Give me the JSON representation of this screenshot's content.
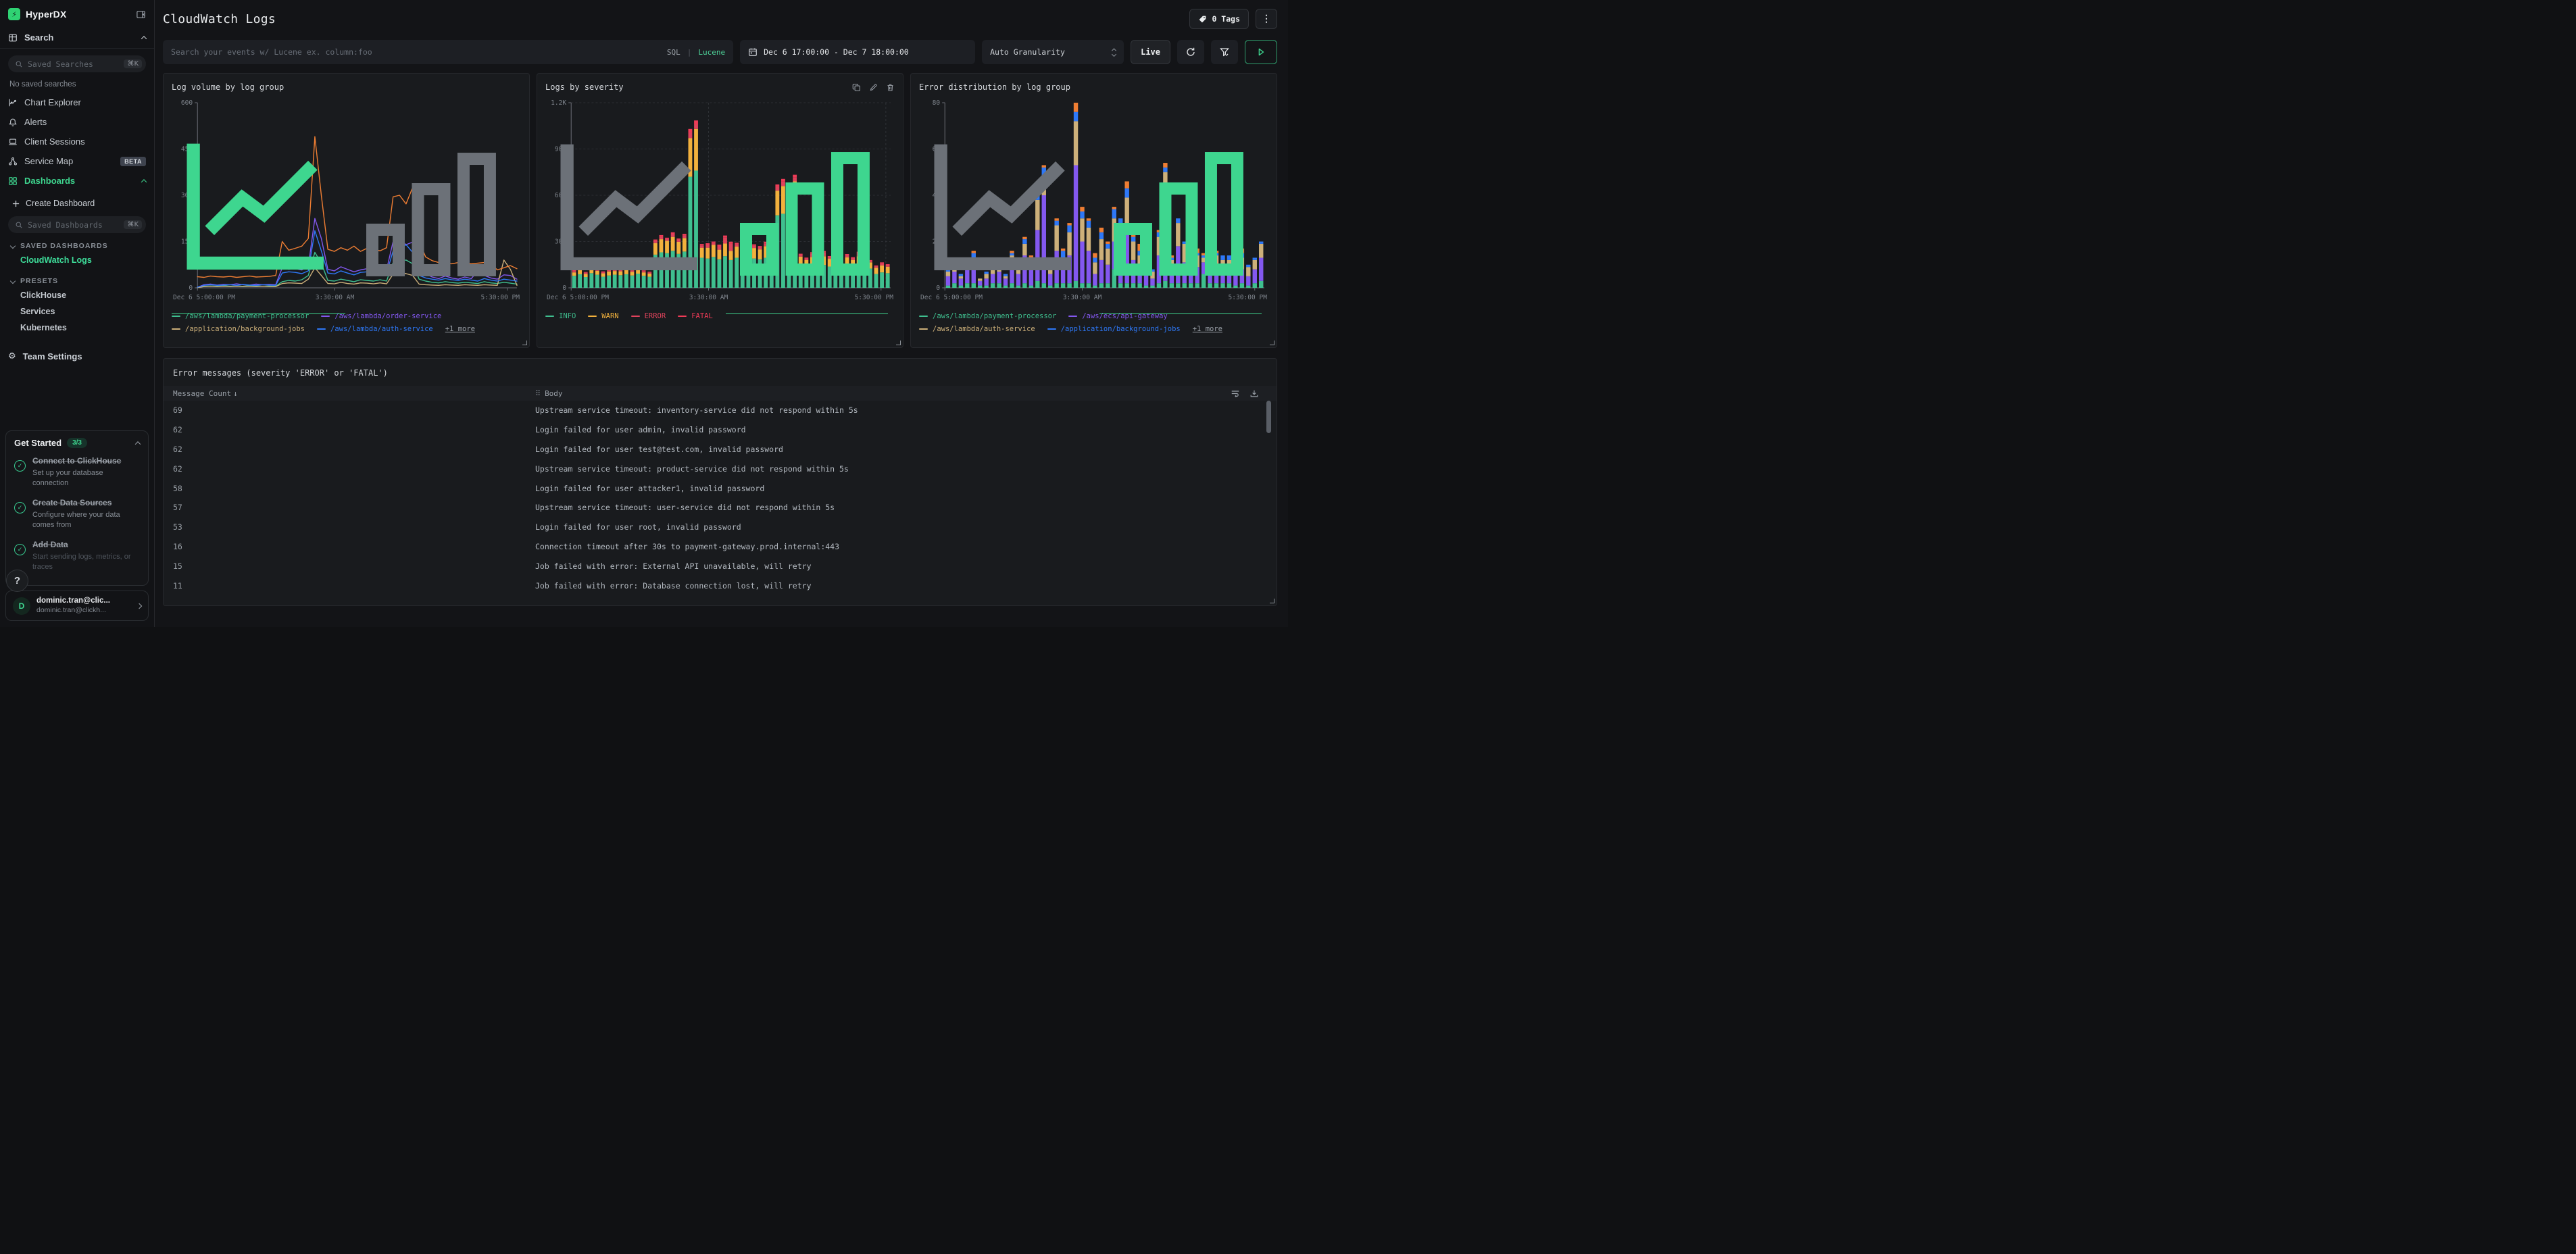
{
  "colors": {
    "accent_green": "#3ed68f",
    "brand_green": "#2fd273"
  },
  "sidebar": {
    "brand": "HyperDX",
    "search_label": "Search",
    "saved_searches_placeholder": "Saved Searches",
    "shortcut": "⌘K",
    "no_saved": "No saved searches",
    "items": [
      {
        "label": "Chart Explorer"
      },
      {
        "label": "Alerts"
      },
      {
        "label": "Client Sessions"
      },
      {
        "label": "Service Map",
        "badge": "BETA"
      },
      {
        "label": "Dashboards"
      }
    ],
    "create_dashboard": "Create Dashboard",
    "saved_dashboards_placeholder": "Saved Dashboards",
    "sections": {
      "saved": "SAVED DASHBOARDS",
      "active": "CloudWatch Logs",
      "presets_label": "PRESETS"
    },
    "presets": [
      "ClickHouse",
      "Services",
      "Kubernetes"
    ],
    "team_settings": "Team Settings",
    "get_started": {
      "title": "Get Started",
      "badge": "3/3",
      "steps": [
        {
          "title": "Connect to ClickHouse",
          "desc": "Set up your database connection"
        },
        {
          "title": "Create Data Sources",
          "desc": "Configure where your data comes from"
        },
        {
          "title": "Add Data",
          "desc": "Start sending logs, metrics, or traces"
        }
      ]
    },
    "help": "?",
    "user": {
      "initial": "D",
      "name": "dominic.tran@clic...",
      "email": "dominic.tran@clickh..."
    }
  },
  "header": {
    "title": "CloudWatch Logs",
    "tags_label": "0 Tags"
  },
  "controls": {
    "search_placeholder": "Search your events w/ Lucene ex. column:foo",
    "sql_label": "SQL",
    "divider": "|",
    "lucene_label": "Lucene",
    "date_range": "Dec 6 17:00:00 - Dec 7 18:00:00",
    "granularity": "Auto Granularity",
    "live_label": "Live"
  },
  "chart_data": [
    {
      "type": "line",
      "title": "Log volume by log group",
      "active_view": "line",
      "grid": false,
      "ylim": [
        0,
        600
      ],
      "y_ticks": [
        0,
        150,
        300,
        450,
        600
      ],
      "x_ticks": [
        "Dec 6 5:00:00 PM",
        "3:30:00 AM",
        "5:30:00 PM"
      ],
      "x_tick_pos": [
        0,
        0.43,
        0.97
      ],
      "more_label": "+1 more",
      "series": [
        {
          "name": "/aws/lambda/payment-processor",
          "color": "#3fbf8f",
          "values": [
            1,
            5,
            6,
            5,
            7,
            5,
            6,
            5,
            7,
            6,
            5,
            6,
            5,
            20,
            24,
            22,
            26,
            40,
            115,
            80,
            24,
            22,
            28,
            24,
            20,
            26,
            24,
            22,
            26,
            22,
            82,
            88,
            90,
            78,
            28,
            22,
            18,
            16,
            20,
            17,
            15,
            18,
            16,
            14,
            20,
            16,
            14,
            18,
            15,
            12
          ]
        },
        {
          "name": "/aws/lambda/order-service",
          "color": "#8358ef",
          "values": [
            2,
            10,
            12,
            9,
            11,
            10,
            13,
            10,
            9,
            12,
            10,
            11,
            10,
            65,
            60,
            62,
            58,
            70,
            225,
            160,
            60,
            55,
            68,
            60,
            52,
            58,
            62,
            55,
            60,
            58,
            150,
            155,
            140,
            148,
            60,
            45,
            35,
            30,
            38,
            32,
            28,
            35,
            30,
            55,
            40,
            32,
            28,
            42,
            40,
            28
          ]
        },
        {
          "name": "/application/background-jobs",
          "color": "#cdb07a",
          "values": [
            1,
            4,
            5,
            4,
            5,
            4,
            5,
            4,
            5,
            4,
            5,
            4,
            4,
            14,
            16,
            15,
            14,
            28,
            65,
            40,
            14,
            13,
            18,
            14,
            12,
            16,
            15,
            13,
            16,
            13,
            44,
            48,
            46,
            40,
            12,
            10,
            9,
            8,
            10,
            9,
            8,
            10,
            9,
            8,
            10,
            9,
            8,
            90,
            60,
            8
          ]
        },
        {
          "name": "/aws/lambda/auth-service",
          "color": "#2e78f7",
          "values": [
            2,
            8,
            10,
            8,
            9,
            10,
            8,
            11,
            9,
            8,
            10,
            9,
            8,
            48,
            52,
            50,
            46,
            55,
            185,
            120,
            48,
            45,
            55,
            48,
            42,
            50,
            52,
            45,
            50,
            46,
            120,
            128,
            140,
            115,
            40,
            32,
            28,
            25,
            30,
            26,
            24,
            28,
            25,
            22,
            30,
            25,
            22,
            28,
            25,
            22
          ]
        },
        {
          "name": "+1 more",
          "color": "#ef7e33",
          "hide_in_legend": true,
          "values": [
            36,
            34,
            38,
            36,
            35,
            37,
            34,
            36,
            38,
            35,
            36,
            37,
            40,
            150,
            122,
            128,
            135,
            160,
            490,
            300,
            125,
            118,
            130,
            122,
            135,
            118,
            128,
            125,
            120,
            130,
            295,
            300,
            272,
            325,
            150,
            100,
            88,
            82,
            80,
            78,
            82,
            80,
            78,
            80,
            82,
            78,
            58,
            65,
            72,
            62
          ]
        }
      ]
    },
    {
      "type": "stacked_bar",
      "title": "Logs by severity",
      "active_view": "bar",
      "grid": true,
      "ylim": [
        0,
        1200
      ],
      "y_ticks": [
        0,
        300,
        600,
        900,
        1200
      ],
      "y_tick_labels": [
        "0",
        "300",
        "600",
        "900",
        "1.2K"
      ],
      "x_ticks": [
        "Dec 6 5:00:00 PM",
        "3:30:00 AM",
        "5:30:00 PM"
      ],
      "x_tick_pos": [
        0,
        0.43,
        0.97
      ],
      "series": [
        {
          "name": "INFO",
          "color": "#3fbf8f",
          "values": [
            78,
            88,
            70,
            95,
            85,
            72,
            80,
            85,
            82,
            88,
            80,
            92,
            78,
            72,
            215,
            230,
            225,
            240,
            220,
            235,
            720,
            760,
            195,
            190,
            200,
            185,
            205,
            180,
            195,
            170,
            200,
            190,
            185,
            195,
            180,
            470,
            480,
            440,
            490,
            150,
            135,
            145,
            140,
            148,
            138,
            152,
            128,
            145,
            135,
            150,
            142,
            125,
            90,
            100,
            95
          ]
        },
        {
          "name": "WARN",
          "color": "#f2b13d",
          "values": [
            22,
            26,
            20,
            30,
            25,
            22,
            26,
            24,
            25,
            28,
            24,
            30,
            22,
            20,
            75,
            85,
            80,
            90,
            78,
            88,
            250,
            270,
            65,
            70,
            78,
            62,
            82,
            60,
            72,
            58,
            80,
            68,
            64,
            75,
            60,
            160,
            180,
            165,
            200,
            52,
            45,
            55,
            48,
            56,
            50,
            58,
            42,
            52,
            46,
            55,
            50,
            40,
            40,
            45,
            42
          ]
        },
        {
          "name": "ERROR",
          "color": "#e0435c",
          "values": [
            9,
            11,
            8,
            12,
            10,
            8,
            11,
            9,
            10,
            12,
            9,
            12,
            8,
            8,
            14,
            16,
            12,
            18,
            13,
            16,
            35,
            30,
            15,
            18,
            14,
            20,
            40,
            45,
            16,
            12,
            22,
            15,
            14,
            18,
            12,
            25,
            28,
            30,
            25,
            12,
            10,
            22,
            14,
            25,
            12,
            18,
            10,
            15,
            12,
            20,
            14,
            10,
            10,
            12,
            10
          ]
        },
        {
          "name": "FATAL",
          "color": "#ef3b57",
          "values": [
            5,
            7,
            5,
            8,
            6,
            5,
            7,
            5,
            6,
            8,
            5,
            8,
            5,
            5,
            9,
            11,
            8,
            12,
            9,
            11,
            25,
            25,
            9,
            11,
            8,
            13,
            12,
            14,
            9,
            7,
            12,
            9,
            8,
            11,
            7,
            15,
            18,
            20,
            18,
            7,
            6,
            9,
            7,
            10,
            6,
            8,
            5,
            7,
            6,
            9,
            7,
            5,
            5,
            8,
            6
          ]
        }
      ]
    },
    {
      "type": "stacked_bar",
      "title": "Error distribution by log group",
      "active_view": "bar",
      "grid": false,
      "ylim": [
        0,
        80
      ],
      "y_ticks": [
        0,
        20,
        40,
        60,
        80
      ],
      "x_ticks": [
        "Dec 6 5:00:00 PM",
        "3:30:00 AM",
        "5:30:00 PM"
      ],
      "x_tick_pos": [
        0,
        0.43,
        0.97
      ],
      "more_label": "+1 more",
      "series": [
        {
          "name": "/aws/lambda/payment-processor",
          "color": "#3fbf8f",
          "values": [
            1,
            2,
            1,
            2,
            2,
            1,
            1,
            2,
            2,
            1,
            2,
            1,
            2,
            1,
            3,
            2,
            1,
            2,
            2,
            2,
            3,
            2,
            2,
            1,
            2,
            2,
            8,
            2,
            2,
            2,
            2,
            1,
            1,
            2,
            3,
            2,
            2,
            2,
            2,
            2,
            6,
            2,
            2,
            2,
            2,
            1,
            2,
            1,
            2,
            3
          ]
        },
        {
          "name": "/aws/ecs/api-gateway",
          "color": "#8358ef",
          "values": [
            4,
            5,
            3,
            6,
            8,
            2,
            3,
            4,
            5,
            3,
            8,
            5,
            12,
            7,
            22,
            38,
            5,
            14,
            6,
            12,
            50,
            18,
            14,
            5,
            10,
            8,
            12,
            14,
            21,
            10,
            6,
            5,
            3,
            12,
            29,
            6,
            16,
            9,
            9,
            7,
            5,
            7,
            7,
            6,
            6,
            5,
            6,
            4,
            6,
            10
          ]
        },
        {
          "name": "/aws/lambda/auth-service",
          "color": "#cdb07a",
          "values": [
            2,
            2,
            1,
            3,
            3,
            1,
            2,
            2,
            2,
            1,
            4,
            3,
            5,
            4,
            13,
            8,
            3,
            11,
            5,
            10,
            19,
            10,
            10,
            5,
            9,
            7,
            10,
            11,
            16,
            8,
            6,
            4,
            3,
            8,
            18,
            4,
            10,
            8,
            7,
            5,
            2,
            6,
            5,
            4,
            4,
            4,
            5,
            4,
            4,
            6
          ]
        },
        {
          "name": "/application/background-jobs",
          "color": "#2e78f7",
          "values": [
            1,
            1,
            1,
            2,
            2,
            0,
            1,
            1,
            1,
            1,
            1,
            1,
            2,
            1,
            2,
            4,
            1,
            2,
            3,
            3,
            4,
            3,
            3,
            2,
            3,
            2,
            4,
            3,
            4,
            2,
            2,
            1,
            1,
            2,
            2,
            1,
            2,
            1,
            1,
            1,
            1,
            2,
            1,
            2,
            2,
            1,
            2,
            1,
            1,
            1
          ]
        },
        {
          "name": "+1 more",
          "color": "#ef7e33",
          "hide_in_legend": true,
          "values": [
            0,
            0,
            0,
            0,
            1,
            0,
            0,
            0,
            0,
            0,
            1,
            0,
            1,
            1,
            4,
            1,
            0,
            1,
            1,
            1,
            4,
            2,
            1,
            2,
            2,
            1,
            1,
            0,
            3,
            1,
            3,
            1,
            0,
            1,
            2,
            1,
            0,
            0,
            1,
            2,
            1,
            1,
            1,
            0,
            0,
            1,
            2,
            0,
            0,
            0
          ]
        }
      ]
    }
  ],
  "table": {
    "title": "Error messages (severity 'ERROR' or 'FATAL')",
    "columns": {
      "count": "Message Count",
      "sort_arrow": "↓",
      "body": "Body"
    },
    "rows": [
      {
        "count": 69,
        "body": "Upstream service timeout: inventory-service did not respond within 5s"
      },
      {
        "count": 62,
        "body": "Login failed for user admin, invalid password"
      },
      {
        "count": 62,
        "body": "Login failed for user test@test.com, invalid password"
      },
      {
        "count": 62,
        "body": "Upstream service timeout: product-service did not respond within 5s"
      },
      {
        "count": 58,
        "body": "Login failed for user attacker1, invalid password"
      },
      {
        "count": 57,
        "body": "Upstream service timeout: user-service did not respond within 5s"
      },
      {
        "count": 53,
        "body": "Login failed for user root, invalid password"
      },
      {
        "count": 16,
        "body": "Connection timeout after 30s to payment-gateway.prod.internal:443"
      },
      {
        "count": 15,
        "body": "Job failed with error: External API unavailable, will retry"
      },
      {
        "count": 11,
        "body": "Job failed with error: Database connection lost, will retry"
      }
    ]
  }
}
